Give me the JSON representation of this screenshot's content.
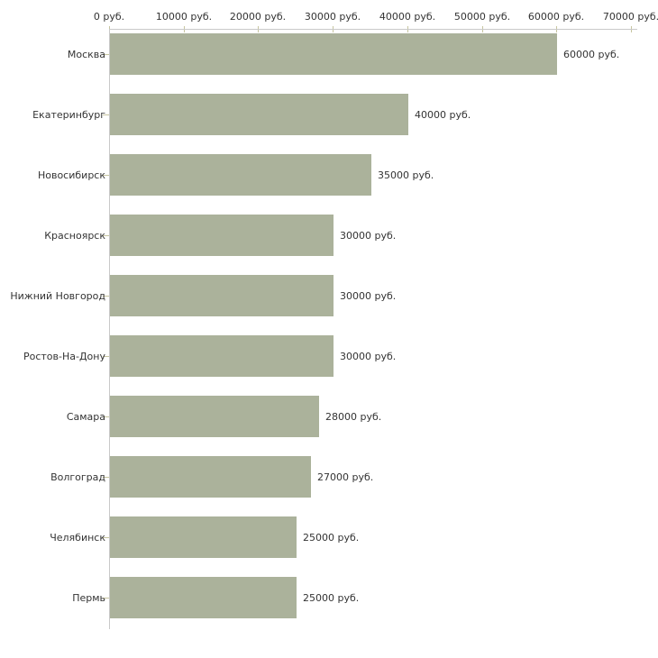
{
  "chart_data": {
    "type": "bar",
    "orientation": "horizontal",
    "title": "",
    "xlabel": "",
    "ylabel": "",
    "unit": "руб.",
    "categories": [
      "Москва",
      "Екатеринбург",
      "Новосибирск",
      "Красноярск",
      "Нижний Новгород",
      "Ростов-На-Дону",
      "Самара",
      "Волгоград",
      "Челябинск",
      "Пермь"
    ],
    "values": [
      60000,
      40000,
      35000,
      30000,
      30000,
      30000,
      28000,
      27000,
      25000,
      25000
    ],
    "bar_labels": [
      "60000 руб.",
      "40000 руб.",
      "35000 руб.",
      "30000 руб.",
      "30000 руб.",
      "30000 руб.",
      "28000 руб.",
      "27000 руб.",
      "25000 руб.",
      "25000 руб."
    ],
    "x_ticks": [
      0,
      10000,
      20000,
      30000,
      40000,
      50000,
      60000,
      70000
    ],
    "x_tick_labels": [
      "0 руб.",
      "10000 руб.",
      "20000 руб.",
      "30000 руб.",
      "40000 руб.",
      "50000 руб.",
      "60000 руб.",
      "70000 руб."
    ],
    "xlim": [
      0,
      70000
    ],
    "axis_position": "top",
    "grid": false,
    "legend": false,
    "colors": {
      "bar": "#abb29b",
      "axis_line": "#c9c9c9",
      "tick": "#c7c5a0",
      "text": "#333333",
      "background": "#ffffff"
    }
  }
}
